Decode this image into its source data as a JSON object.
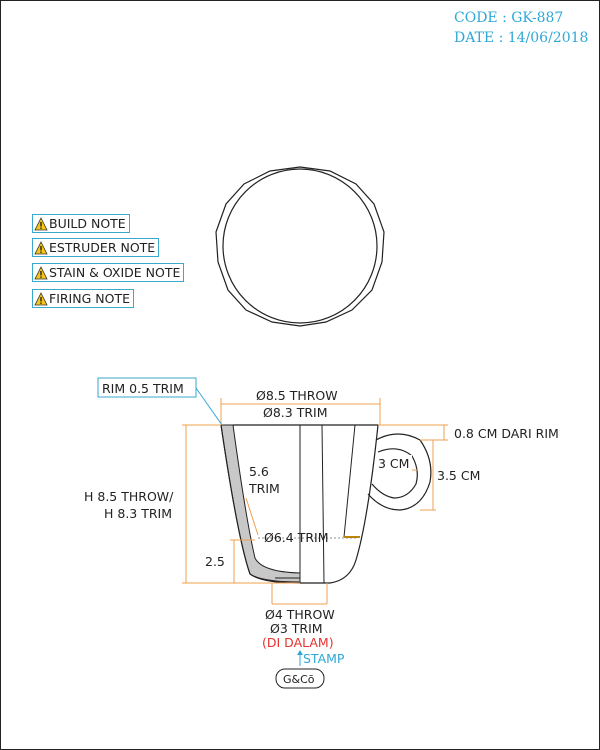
{
  "header": {
    "code": "CODE : GK-887",
    "date": "DATE : 14/06/2018"
  },
  "notes": [
    {
      "label": "BUILD NOTE"
    },
    {
      "label": "ESTRUDER NOTE"
    },
    {
      "label": "STAIN & OXIDE NOTE"
    },
    {
      "label": "FIRING NOTE"
    }
  ],
  "labels": {
    "rim": "RIM 0.5 TRIM",
    "top_throw": "Ø8.5 THROW",
    "top_trim": "Ø8.3 TRIM",
    "wall_a": "5.6",
    "wall_b": "TRIM",
    "height_a": "H 8.5 THROW/",
    "height_b": "H 8.3 TRIM",
    "inner": "Ø6.4 TRIM",
    "base_h": "2.5",
    "foot_throw": "Ø4 THROW",
    "foot_trim": "Ø3 TRIM",
    "foot_inside": "(DI DALAM)",
    "stamp": "STAMP",
    "stamp_logo": "G&Cō",
    "handle_top": "0.8 CM DARI RIM",
    "handle_w": "3 CM",
    "handle_h": "3.5 CM"
  },
  "colors": {
    "accent": "#2fa8d8",
    "dim": "#f0a050",
    "note_red": "#e6332e",
    "wall_gray": "#c8c8c8"
  }
}
